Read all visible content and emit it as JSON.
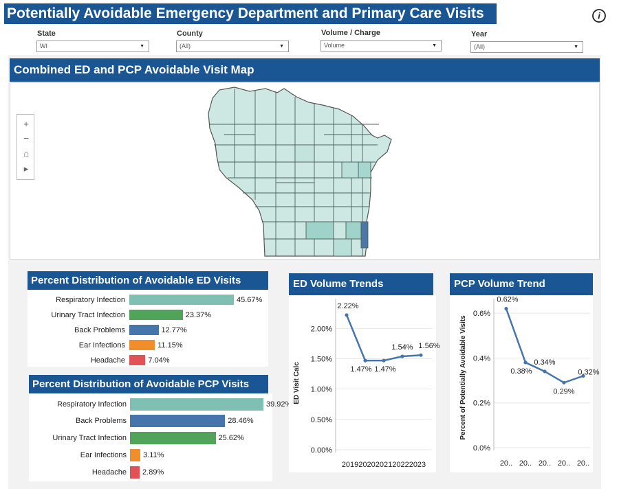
{
  "header": {
    "title": "Potentially Avoidable Emergency Department and Primary Care Visits"
  },
  "filters": {
    "state": {
      "label": "State",
      "value": "WI"
    },
    "county": {
      "label": "County",
      "value": "(All)"
    },
    "volume_charge": {
      "label": "Volume / Charge",
      "value": "Volume"
    },
    "year": {
      "label": "Year",
      "value": "(All)"
    }
  },
  "map": {
    "title": "Combined ED and PCP Avoidable Visit Map",
    "tools": {
      "zoom_in": "+",
      "zoom_out": "−",
      "home": "⌂",
      "expand": "▸"
    }
  },
  "ed_distribution": {
    "title": "Percent Distribution of Avoidable ED Visits",
    "rows": [
      {
        "label": "Respiratory Infection",
        "display": "45.67%",
        "value": 45.67,
        "color": "#7fc0b3"
      },
      {
        "label": "Urinary Tract Infection",
        "display": "23.37%",
        "value": 23.37,
        "color": "#52a35a"
      },
      {
        "label": "Back Problems",
        "display": "12.77%",
        "value": 12.77,
        "color": "#4675ab"
      },
      {
        "label": "Ear Infections",
        "display": "11.15%",
        "value": 11.15,
        "color": "#f08e2b"
      },
      {
        "label": "Headache",
        "display": "7.04%",
        "value": 7.04,
        "color": "#e05256"
      }
    ]
  },
  "pcp_distribution": {
    "title": "Percent Distribution of Avoidable PCP Visits",
    "rows": [
      {
        "label": "Respiratory Infection",
        "display": "39.92%",
        "value": 39.92,
        "color": "#7fc0b3"
      },
      {
        "label": "Back Problems",
        "display": "28.46%",
        "value": 28.46,
        "color": "#4675ab"
      },
      {
        "label": "Urinary Tract Infection",
        "display": "25.62%",
        "value": 25.62,
        "color": "#52a35a"
      },
      {
        "label": "Ear Infections",
        "display": "3.11%",
        "value": 3.11,
        "color": "#f08e2b"
      },
      {
        "label": "Headache",
        "display": "2.89%",
        "value": 2.89,
        "color": "#e05256"
      }
    ]
  },
  "chart_data": [
    {
      "type": "line",
      "title": "ED Volume Trends",
      "ylabel": "ED Visit Calc",
      "x": [
        "2019",
        "2020",
        "2021",
        "2022",
        "2023"
      ],
      "x_tick_text": "20192020202120222023",
      "values": [
        2.22,
        1.47,
        1.47,
        1.54,
        1.56
      ],
      "labels": [
        "2.22%",
        "1.47%",
        "1.47%",
        "1.54%",
        "1.56%"
      ],
      "yticks": [
        "0.00%",
        "0.50%",
        "1.00%",
        "1.50%",
        "2.00%"
      ],
      "ylim": [
        0,
        2.4
      ],
      "color": "#4675ab"
    },
    {
      "type": "line",
      "title": "PCP Volume Trend",
      "ylabel": "Percent of Potentially Avoidable Visits",
      "x": [
        "20..",
        "20..",
        "20..",
        "20..",
        "20.."
      ],
      "values": [
        0.62,
        0.38,
        0.34,
        0.29,
        0.32
      ],
      "labels": [
        "0.62%",
        "0.38%",
        "0.34%",
        "0.29%",
        "0.32%"
      ],
      "yticks": [
        "0.0%",
        "0.2%",
        "0.4%",
        "0.6%"
      ],
      "ylim": [
        0,
        0.64
      ],
      "color": "#4675ab"
    }
  ]
}
